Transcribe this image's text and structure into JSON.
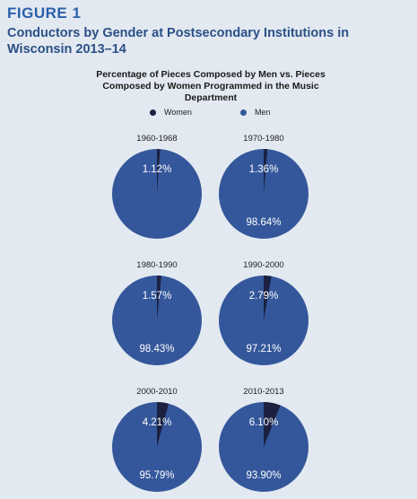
{
  "figure_label": "FIGURE 1",
  "title": "Conductors by Gender at Postsecondary Institutions in Wisconsin 2013–14",
  "colors": {
    "women": "#1c2142",
    "men": "#34579b",
    "label": "#ffffff"
  },
  "chart_data": {
    "type": "pie",
    "title": "Percentage of Pieces Composed by Men vs. Pieces Composed by Women Programmed in the Music Department",
    "legend": [
      "Women",
      "Men"
    ],
    "legend_position": "top",
    "charts": [
      {
        "label": "1960-1968",
        "women": 1.12,
        "men": 98.88,
        "women_label": "1.12%",
        "men_label": ""
      },
      {
        "label": "1970-1980",
        "women": 1.36,
        "men": 98.64,
        "women_label": "1.36%",
        "men_label": "98.64%"
      },
      {
        "label": "1980-1990",
        "women": 1.57,
        "men": 98.43,
        "women_label": "1.57%",
        "men_label": "98.43%"
      },
      {
        "label": "1990-2000",
        "women": 2.79,
        "men": 97.21,
        "women_label": "2.79%",
        "men_label": "97.21%"
      },
      {
        "label": "2000-2010",
        "women": 4.21,
        "men": 95.79,
        "women_label": "4.21%",
        "men_label": "95.79%"
      },
      {
        "label": "2010-2013",
        "women": 6.1,
        "men": 93.9,
        "women_label": "6.10%",
        "men_label": "93.90%"
      }
    ]
  }
}
